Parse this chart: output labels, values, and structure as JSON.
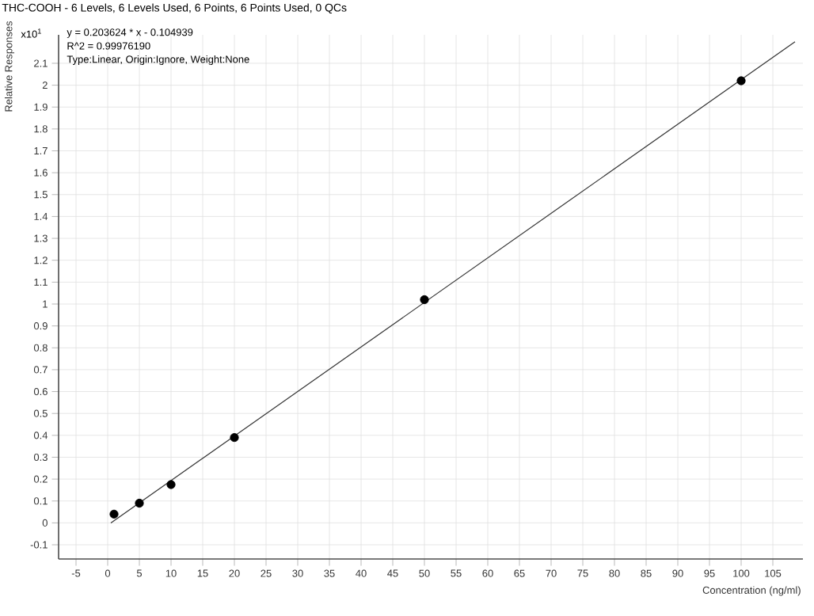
{
  "chart_data": {
    "type": "scatter",
    "title": "THC-COOH - 6 Levels, 6 Levels Used, 6 Points, 6 Points Used, 0 QCs",
    "xlabel": "Concentration (ng/ml)",
    "ylabel": "Relative Responses",
    "annotations": [
      "x10$^{1}$",
      "y = 0.203624 * x  - 0.104939",
      "R^2 = 0.99976190",
      "Type:Linear,  Origin:Ignore,  Weight:None"
    ],
    "series": [
      {
        "type": "line",
        "marker": "none",
        "color": "#333333",
        "x": [
          0.5,
          108.5
        ],
        "values": [
          0.0,
          2.198
        ]
      },
      {
        "marker": "circle",
        "color": "#000000",
        "x": [
          1,
          5,
          10,
          20,
          50,
          100
        ],
        "values": [
          0.04,
          0.09,
          0.175,
          0.39,
          1.02,
          2.02
        ]
      }
    ],
    "grid": true,
    "xlim": [
      -7.75,
      109.75
    ],
    "ylim": [
      -0.165,
      2.23
    ],
    "xticks": [
      -5,
      0,
      5,
      10,
      15,
      20,
      25,
      30,
      35,
      40,
      45,
      50,
      55,
      60,
      65,
      70,
      75,
      80,
      85,
      90,
      95,
      100,
      105
    ],
    "yticks": [
      -0.1,
      0,
      0.1,
      0.2,
      0.3,
      0.4,
      0.5,
      0.6,
      0.7,
      0.8,
      0.9,
      1,
      1.1,
      1.2,
      1.3,
      1.4,
      1.5,
      1.6,
      1.7,
      1.8,
      1.9,
      2,
      2.1
    ]
  }
}
